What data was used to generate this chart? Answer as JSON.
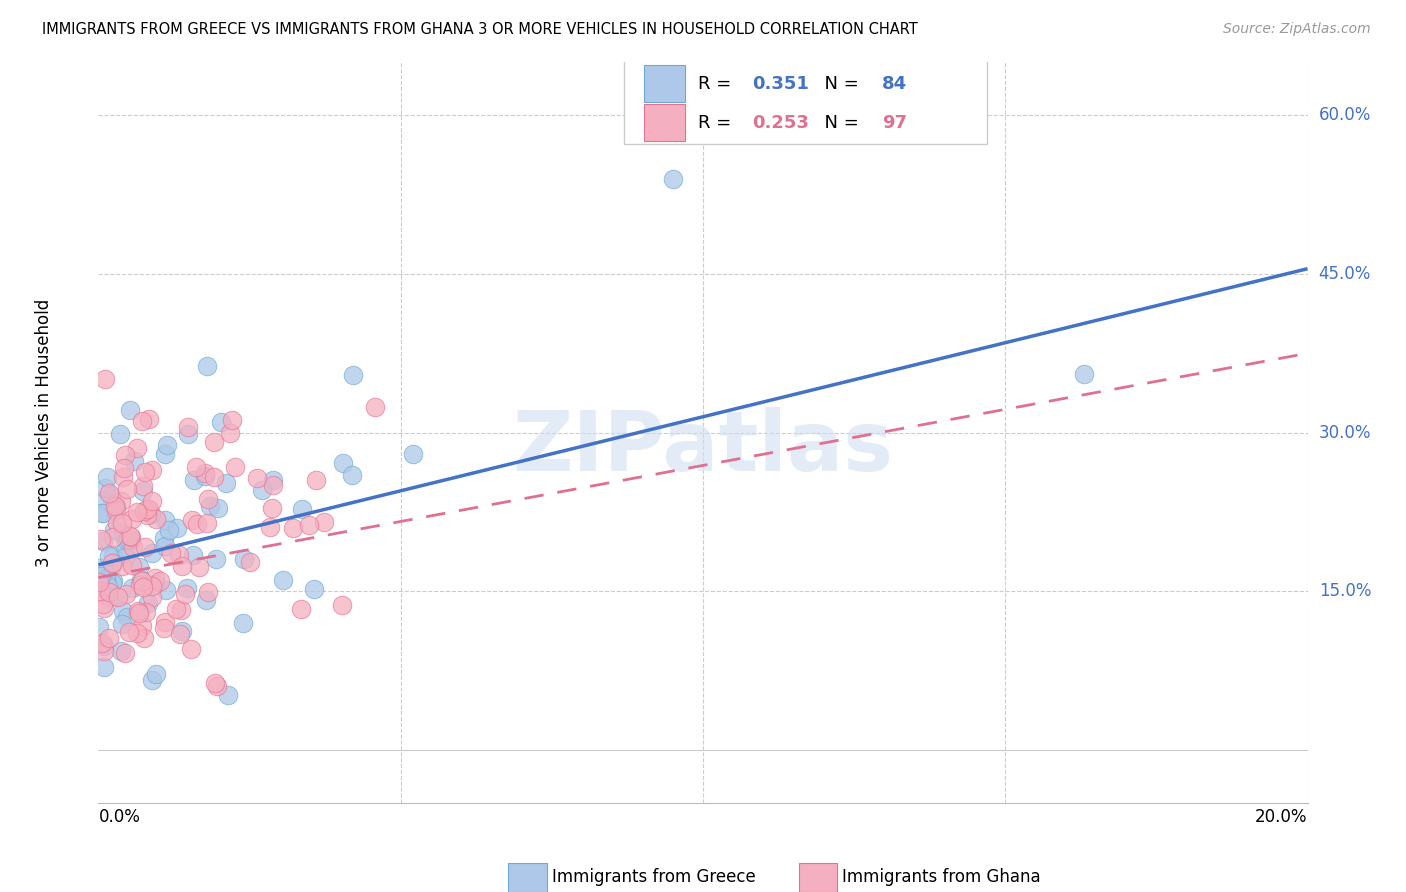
{
  "title": "IMMIGRANTS FROM GREECE VS IMMIGRANTS FROM GHANA 3 OR MORE VEHICLES IN HOUSEHOLD CORRELATION CHART",
  "source": "Source: ZipAtlas.com",
  "ylabel": "3 or more Vehicles in Household",
  "xlim": [
    0.0,
    0.2
  ],
  "ylim": [
    -0.05,
    0.65
  ],
  "greece_R": 0.351,
  "greece_N": 84,
  "ghana_R": 0.253,
  "ghana_N": 97,
  "greece_fill": "#adc8e8",
  "ghana_fill": "#f4afc0",
  "greece_edge": "#6aaad4",
  "ghana_edge": "#e87090",
  "greece_line": "#4472c4",
  "ghana_line": "#e07090",
  "ytick_vals": [
    0.15,
    0.3,
    0.45,
    0.6
  ],
  "ytick_labels": [
    "15.0%",
    "30.0%",
    "45.0%",
    "60.0%"
  ],
  "right_label_color": "#4472c4",
  "watermark_color": "#d0dff0",
  "legend_box_color": "#f0f0f0"
}
